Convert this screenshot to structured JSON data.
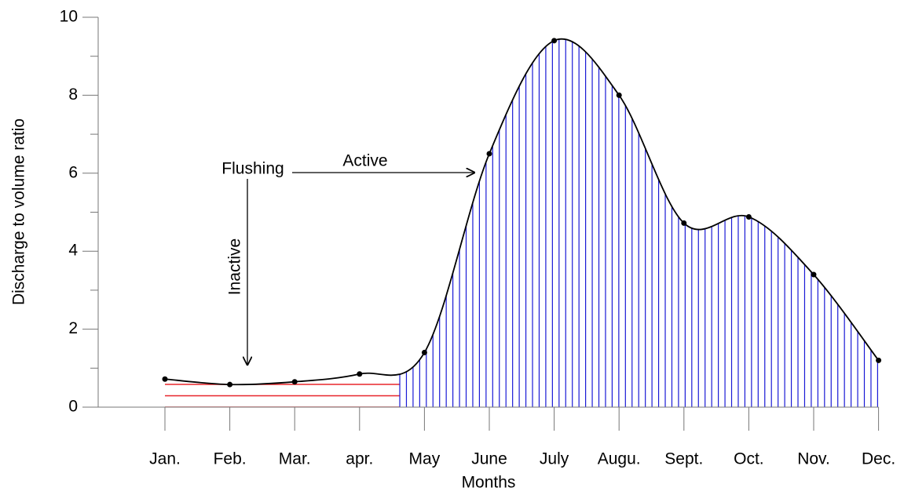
{
  "chart_data": {
    "type": "line",
    "x_label": "Months",
    "y_label": "Discharge to volume ratio",
    "categories": [
      "Jan.",
      "Feb.",
      "Mar.",
      "apr.",
      "May",
      "June",
      "July",
      "Augu.",
      "Sept.",
      "Oct.",
      "Nov.",
      "Dec."
    ],
    "values": [
      0.72,
      0.58,
      0.65,
      0.85,
      1.4,
      6.5,
      9.4,
      8.0,
      4.72,
      4.88,
      3.4,
      1.2
    ],
    "color": "#000000",
    "inactive_color": "#e8262b",
    "active_color": "#1a1ad6",
    "ylim": [
      0,
      10
    ],
    "yticks": [
      0,
      2,
      4,
      6,
      8,
      10
    ],
    "yminorticks": [
      1,
      3,
      5,
      7,
      9
    ],
    "annotations": [
      "Flushing",
      "Active",
      "Inactive"
    ]
  }
}
